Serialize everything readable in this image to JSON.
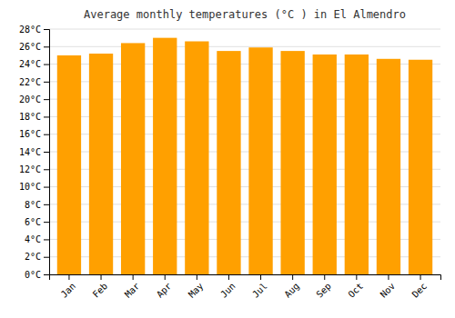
{
  "chart_data": {
    "type": "bar",
    "title": "Average monthly temperatures (°C ) in El Almendro",
    "categories": [
      "Jan",
      "Feb",
      "Mar",
      "Apr",
      "May",
      "Jun",
      "Jul",
      "Aug",
      "Sep",
      "Oct",
      "Nov",
      "Dec"
    ],
    "values": [
      25.0,
      25.2,
      26.4,
      27.0,
      26.6,
      25.5,
      25.9,
      25.5,
      25.1,
      25.1,
      24.6,
      24.5
    ],
    "color": "#FFA000",
    "ylim": [
      0,
      28
    ],
    "yticks": [
      {
        "value": 0,
        "label": "0°C"
      },
      {
        "value": 2,
        "label": "2°C"
      },
      {
        "value": 4,
        "label": "4°C"
      },
      {
        "value": 6,
        "label": "6°C"
      },
      {
        "value": 8,
        "label": "8°C"
      },
      {
        "value": 10,
        "label": "10°C"
      },
      {
        "value": 12,
        "label": "12°C"
      },
      {
        "value": 14,
        "label": "14°C"
      },
      {
        "value": 16,
        "label": "16°C"
      },
      {
        "value": 18,
        "label": "18°C"
      },
      {
        "value": 20,
        "label": "20°C"
      },
      {
        "value": 22,
        "label": "22°C"
      },
      {
        "value": 24,
        "label": "24°C"
      },
      {
        "value": 26,
        "label": "26°C"
      },
      {
        "value": 28,
        "label": "28°C"
      }
    ],
    "grid": true
  }
}
